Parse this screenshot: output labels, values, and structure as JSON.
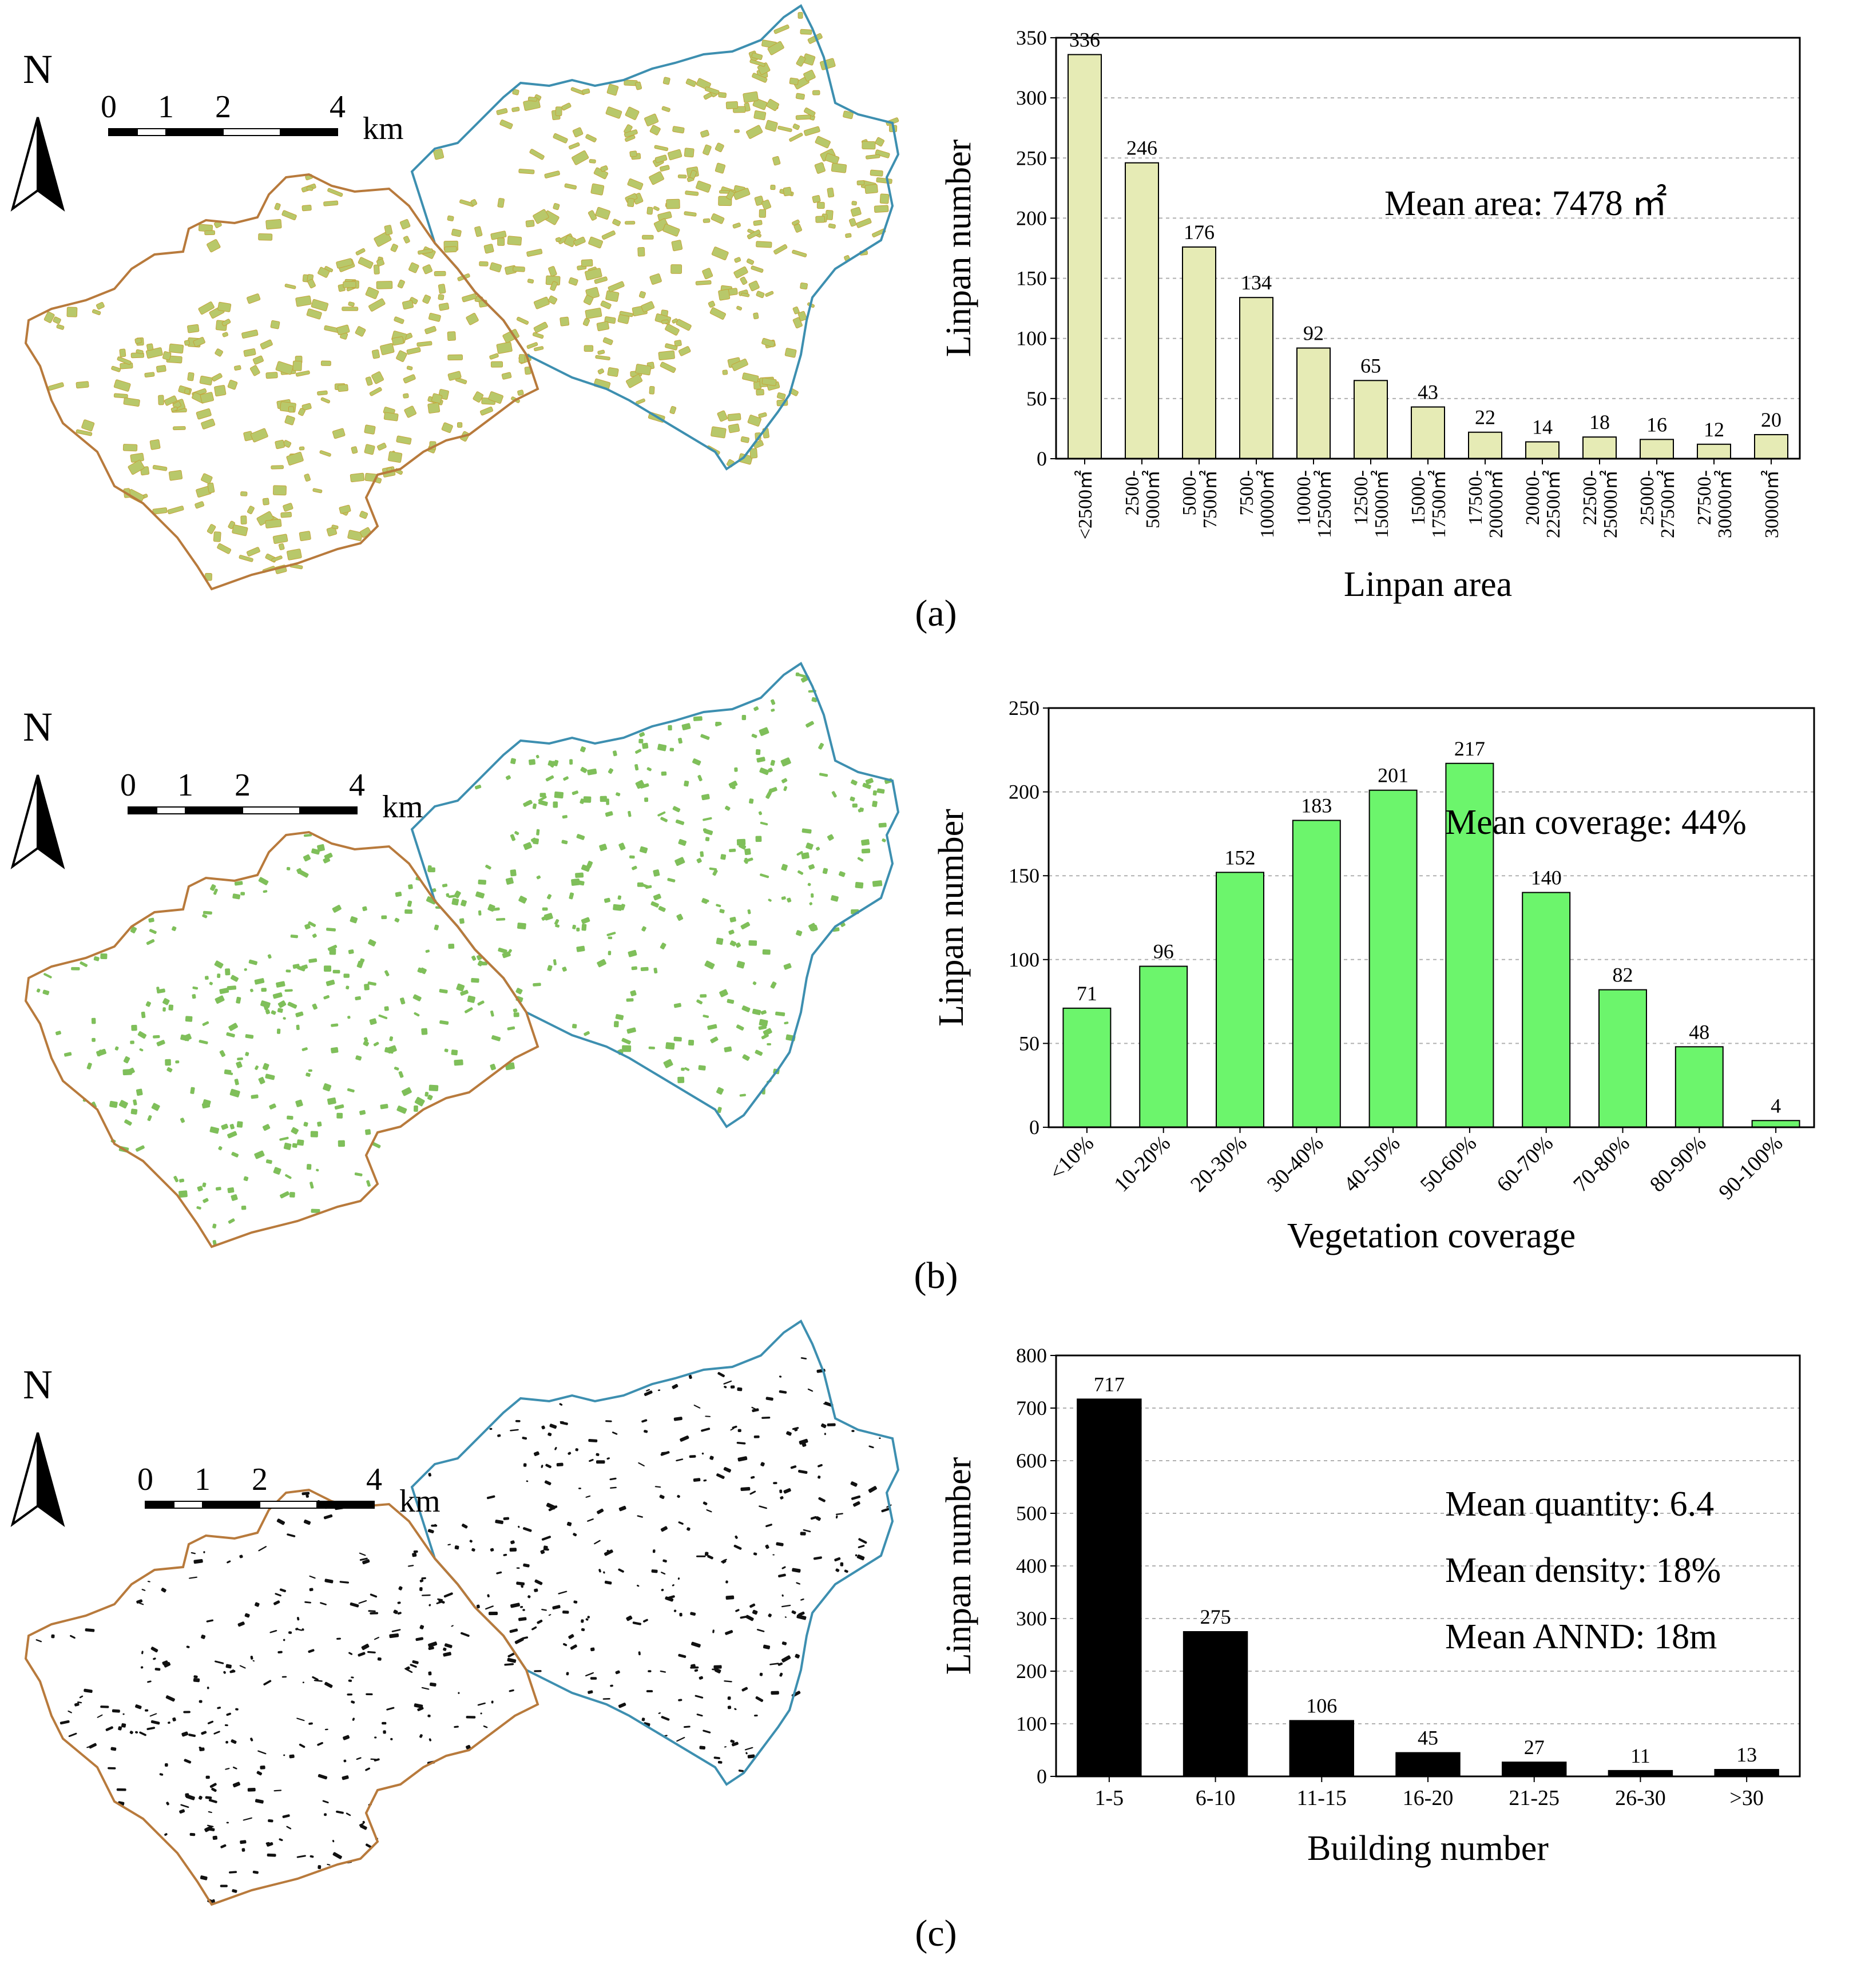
{
  "colors": {
    "west_boundary": "#b87a3c",
    "east_boundary": "#3d8fb0",
    "area_fill": "#b8c86a",
    "area_fill_stroke": "#c4a43a",
    "veg_fill": "#7fbf5a",
    "building_fill": "#111111",
    "bar_a": "#e6ebb5",
    "bar_b": "#6cf56c",
    "bar_c": "#000000",
    "grid": "#b0b0b0"
  },
  "icons": {
    "north_arrow": "north-arrow-icon"
  },
  "panels": [
    {
      "label": "(a)",
      "map": {
        "north_label": "N",
        "scale_ticks": [
          "0",
          "1",
          "2",
          "4"
        ],
        "scale_unit": "km",
        "patch_style": "area"
      },
      "chart_data": {
        "type": "bar",
        "xlabel": "Linpan area",
        "ylabel": "Linpan number",
        "ylim": [
          0,
          350
        ],
        "yticks": [
          0,
          50,
          100,
          150,
          200,
          250,
          300,
          350
        ],
        "categories": [
          "<2500㎡",
          "2500-\n5000㎡",
          "5000-\n7500㎡",
          "7500-\n10000㎡",
          "10000-\n12500㎡",
          "12500-\n15000㎡",
          "15000-\n17500㎡",
          "17500-\n20000㎡",
          "20000-\n22500㎡",
          "22500-\n25000㎡",
          "25000-\n27500㎡",
          "27500-\n30000㎡",
          "30000㎡"
        ],
        "values": [
          336,
          246,
          176,
          134,
          92,
          65,
          43,
          22,
          14,
          18,
          16,
          12,
          20
        ],
        "tick_rotation": -90,
        "annotations": [
          "Mean area: 7478 ㎡"
        ],
        "grid": true
      }
    },
    {
      "label": "(b)",
      "map": {
        "north_label": "N",
        "scale_ticks": [
          "0",
          "1",
          "2",
          "4"
        ],
        "scale_unit": "km",
        "patch_style": "veg"
      },
      "chart_data": {
        "type": "bar",
        "xlabel": "Vegetation coverage",
        "ylabel": "Linpan number",
        "ylim": [
          0,
          250
        ],
        "yticks": [
          0,
          50,
          100,
          150,
          200,
          250
        ],
        "categories": [
          "<10%",
          "10-20%",
          "20-30%",
          "30-40%",
          "40-50%",
          "50-60%",
          "60-70%",
          "70-80%",
          "80-90%",
          "90-100%"
        ],
        "values": [
          71,
          96,
          152,
          183,
          201,
          217,
          140,
          82,
          48,
          4
        ],
        "tick_rotation": -45,
        "annotations": [
          "Mean coverage: 44%"
        ],
        "grid": true
      }
    },
    {
      "label": "(c)",
      "map": {
        "north_label": "N",
        "scale_ticks": [
          "0",
          "1",
          "2",
          "4"
        ],
        "scale_unit": "km",
        "patch_style": "building"
      },
      "chart_data": {
        "type": "bar",
        "xlabel": "Building number",
        "ylabel": "Linpan number",
        "ylim": [
          0,
          800
        ],
        "yticks": [
          0,
          100,
          200,
          300,
          400,
          500,
          600,
          700,
          800
        ],
        "categories": [
          "1-5",
          "6-10",
          "11-15",
          "16-20",
          "21-25",
          "26-30",
          ">30"
        ],
        "values": [
          717,
          275,
          106,
          45,
          27,
          11,
          13
        ],
        "tick_rotation": 0,
        "annotations": [
          "Mean quantity: 6.4",
          "Mean density: 18%",
          "Mean ANND: 18m"
        ],
        "grid": true
      }
    }
  ]
}
